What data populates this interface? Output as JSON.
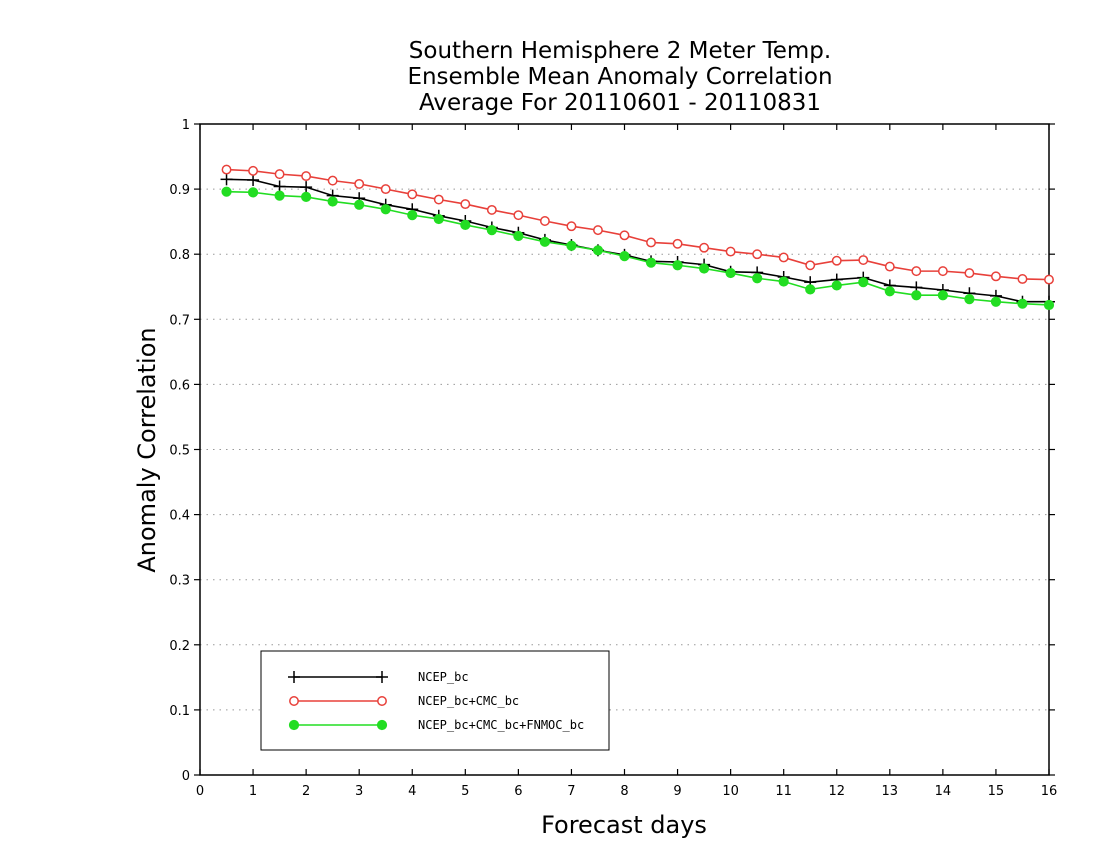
{
  "chart_data": {
    "type": "line",
    "title_lines": [
      "Southern Hemisphere 2 Meter Temp.",
      "Ensemble Mean Anomaly Correlation",
      "Average For 20110601 - 20110831"
    ],
    "xlabel": "Forecast days",
    "ylabel": "Anomaly Correlation",
    "xlim": [
      0,
      16
    ],
    "ylim": [
      0,
      1
    ],
    "xticks": [
      0,
      1,
      2,
      3,
      4,
      5,
      6,
      7,
      8,
      9,
      10,
      11,
      12,
      13,
      14,
      15,
      16
    ],
    "yticks": [
      0,
      0.1,
      0.2,
      0.3,
      0.4,
      0.5,
      0.6,
      0.7,
      0.8,
      0.9,
      1
    ],
    "grid": "horizontal dotted",
    "legend_position": "bottom-left",
    "x": [
      0.5,
      1,
      1.5,
      2,
      2.5,
      3,
      3.5,
      4,
      4.5,
      5,
      5.5,
      6,
      6.5,
      7,
      7.5,
      8,
      8.5,
      9,
      9.5,
      10,
      10.5,
      11,
      11.5,
      12,
      12.5,
      13,
      13.5,
      14,
      14.5,
      15,
      15.5,
      16
    ],
    "series": [
      {
        "name": "NCEP_bc",
        "color": "#000000",
        "marker": "plus",
        "values": [
          0.915,
          0.914,
          0.904,
          0.903,
          0.89,
          0.886,
          0.876,
          0.869,
          0.859,
          0.851,
          0.841,
          0.833,
          0.822,
          0.814,
          0.806,
          0.799,
          0.789,
          0.788,
          0.784,
          0.773,
          0.772,
          0.765,
          0.757,
          0.761,
          0.764,
          0.752,
          0.749,
          0.745,
          0.74,
          0.736,
          0.727,
          0.727
        ]
      },
      {
        "name": "NCEP_bc+CMC_bc",
        "color": "#e8403a",
        "marker": "open-circle",
        "values": [
          0.93,
          0.928,
          0.923,
          0.92,
          0.913,
          0.908,
          0.9,
          0.892,
          0.884,
          0.877,
          0.868,
          0.86,
          0.851,
          0.843,
          0.837,
          0.829,
          0.818,
          0.816,
          0.81,
          0.804,
          0.8,
          0.795,
          0.783,
          0.79,
          0.791,
          0.781,
          0.774,
          0.774,
          0.771,
          0.766,
          0.762,
          0.761
        ]
      },
      {
        "name": "NCEP_bc+CMC_bc+FNMOC_bc",
        "color": "#22dd22",
        "marker": "filled-circle",
        "values": [
          0.896,
          0.895,
          0.89,
          0.888,
          0.881,
          0.876,
          0.869,
          0.86,
          0.854,
          0.845,
          0.837,
          0.828,
          0.819,
          0.813,
          0.806,
          0.797,
          0.787,
          0.783,
          0.778,
          0.771,
          0.763,
          0.758,
          0.746,
          0.752,
          0.757,
          0.743,
          0.737,
          0.737,
          0.731,
          0.727,
          0.724,
          0.722
        ]
      }
    ]
  }
}
